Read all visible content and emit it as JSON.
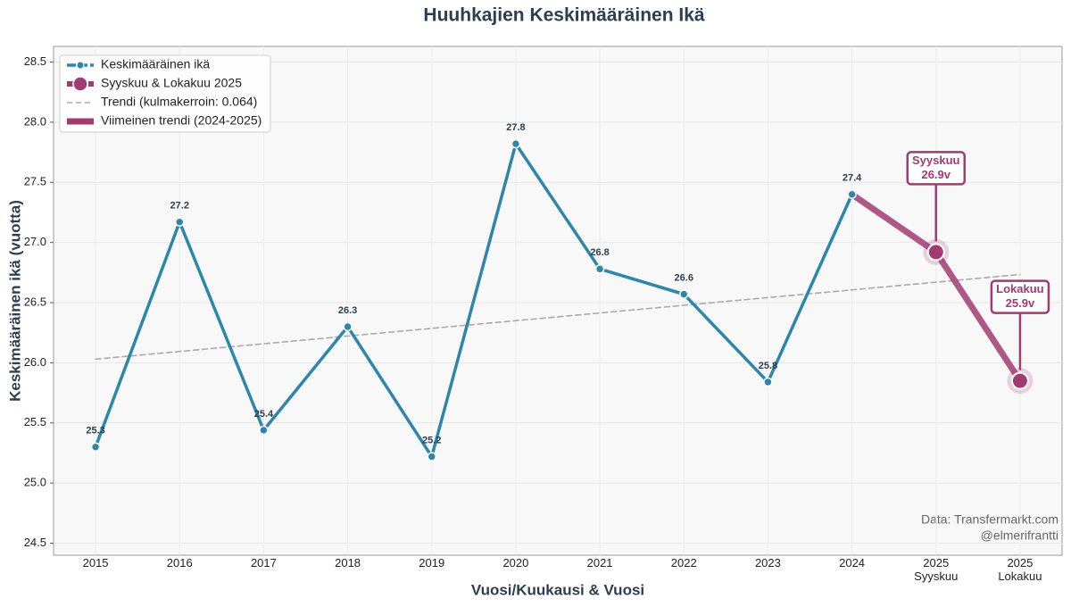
{
  "chart_data": {
    "type": "line",
    "title": "Huuhkajien Keskimääräinen Ikä",
    "xlabel": "Vuosi/Kuukausi & Vuosi",
    "ylabel": "Keskimääräinen ikä (vuotta)",
    "categories": [
      "2015",
      "2016",
      "2017",
      "2018",
      "2019",
      "2020",
      "2021",
      "2022",
      "2023",
      "2024",
      "2025\nSyyskuu",
      "2025\nLokakuu"
    ],
    "series": [
      {
        "name": "Keskimääräinen ikä",
        "color": "#2e86ab",
        "style": "line-marker",
        "values": [
          25.3,
          27.17,
          25.44,
          26.3,
          25.22,
          27.82,
          26.78,
          26.57,
          25.84,
          27.4,
          null,
          null
        ],
        "value_labels": [
          "25.3",
          "27.2",
          "25.4",
          "26.3",
          "25.2",
          "27.8",
          "26.8",
          "26.6",
          "25.8",
          "27.4",
          null,
          null
        ]
      },
      {
        "name": "Syyskuu & Lokakuu 2025",
        "color": "#a23b72",
        "style": "big-marker",
        "values": [
          null,
          null,
          null,
          null,
          null,
          null,
          null,
          null,
          null,
          null,
          26.92,
          25.85
        ]
      },
      {
        "name": "Trendi (kulmakerroin: 0.064)",
        "color": "#aaaaaa",
        "style": "dashed",
        "values": [
          26.03,
          26.094,
          26.158,
          26.222,
          26.286,
          26.35,
          26.414,
          26.478,
          26.542,
          26.606,
          26.67,
          26.734
        ]
      },
      {
        "name": "Viimeinen trendi (2024-2025)",
        "color": "#a23b72",
        "style": "thick",
        "values": [
          null,
          null,
          null,
          null,
          null,
          null,
          null,
          null,
          null,
          27.4,
          26.92,
          25.85
        ]
      }
    ],
    "annotations": [
      [
        "Syyskuu",
        "26.9v"
      ],
      [
        "Lokakuu",
        "25.9v"
      ]
    ],
    "source": [
      "Data: Transfermarkt.com",
      "@elmerifrantti"
    ],
    "ylim": [
      24.4,
      28.63
    ],
    "yticks": [
      24.5,
      {
        "value": 25,
        "label": "25.0"
      },
      25.5,
      {
        "value": 26,
        "label": "26.0"
      },
      26.5,
      {
        "value": 27,
        "label": "27.0"
      },
      27.5,
      {
        "value": 28,
        "label": "28.0"
      },
      28.5
    ],
    "grid": true,
    "legend": "upper left"
  }
}
